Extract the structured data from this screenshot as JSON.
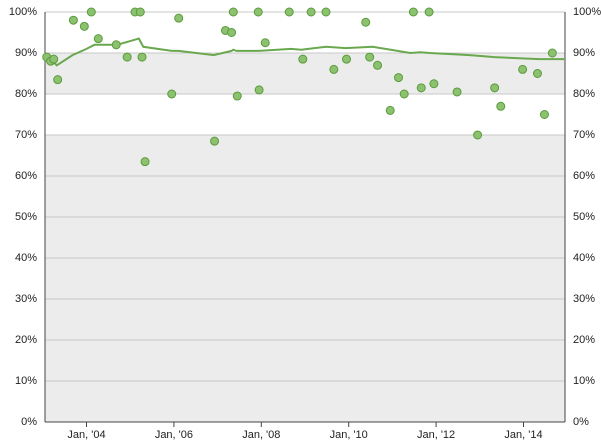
{
  "chart_data": {
    "type": "scatter",
    "xlim": [
      2003.05,
      2014.95
    ],
    "xticks": [
      {
        "value": 2004,
        "label": "Jan, '04"
      },
      {
        "value": 2006,
        "label": "Jan, '06"
      },
      {
        "value": 2008,
        "label": "Jan, '08"
      },
      {
        "value": 2010,
        "label": "Jan, '10"
      },
      {
        "value": 2012,
        "label": "Jan, '12"
      },
      {
        "value": 2014,
        "label": "Jan, '14"
      }
    ],
    "ylim": [
      0,
      100
    ],
    "yticks": [
      {
        "value": 0,
        "label": "0%"
      },
      {
        "value": 10,
        "label": "10%"
      },
      {
        "value": 20,
        "label": "20%"
      },
      {
        "value": 30,
        "label": "30%"
      },
      {
        "value": 40,
        "label": "40%"
      },
      {
        "value": 50,
        "label": "50%"
      },
      {
        "value": 60,
        "label": "60%"
      },
      {
        "value": 70,
        "label": "70%"
      },
      {
        "value": 80,
        "label": "80%"
      },
      {
        "value": 90,
        "label": "90%"
      },
      {
        "value": 100,
        "label": "100%"
      }
    ],
    "grid": true,
    "points": {
      "color": "#8cc26f",
      "x": [
        2003.09,
        2003.18,
        2003.25,
        2003.34,
        2003.7,
        2003.95,
        2004.11,
        2004.27,
        2004.68,
        2004.93,
        2005.11,
        2005.23,
        2005.27,
        2005.34,
        2005.95,
        2006.11,
        2006.93,
        2007.18,
        2007.32,
        2007.36,
        2007.45,
        2007.93,
        2007.95,
        2008.09,
        2008.64,
        2008.95,
        2009.14,
        2009.48,
        2009.66,
        2009.95,
        2010.39,
        2010.48,
        2010.66,
        2010.95,
        2011.14,
        2011.27,
        2011.48,
        2011.66,
        2011.84,
        2011.95,
        2012.48,
        2012.95,
        2013.34,
        2013.48,
        2013.98,
        2014.32,
        2014.48,
        2014.66
      ],
      "y": [
        89,
        88,
        88.5,
        83.5,
        98,
        96.5,
        100,
        93.5,
        92,
        89,
        100,
        100,
        89,
        63.5,
        80,
        98.5,
        68.5,
        95.5,
        95,
        100,
        79.5,
        100,
        81,
        92.5,
        100,
        88.5,
        100,
        100,
        86,
        88.5,
        97.5,
        89,
        87,
        76,
        84,
        80,
        100,
        81.5,
        100,
        82.5,
        80.5,
        70,
        81.5,
        77,
        86,
        85,
        75,
        90
      ]
    },
    "trend": {
      "color": "#6aa84f",
      "x": [
        2003.09,
        2003.32,
        2003.68,
        2004.0,
        2004.18,
        2004.7,
        2005.2,
        2005.3,
        2005.95,
        2006.11,
        2006.91,
        2007.32,
        2007.36,
        2007.43,
        2007.95,
        2008.68,
        2008.91,
        2009.48,
        2009.93,
        2010.55,
        2011.41,
        2011.64,
        2011.86,
        2012.77,
        2013.34,
        2014.36,
        2014.93
      ],
      "y": [
        89.5,
        87,
        89.5,
        91,
        92,
        92,
        93.5,
        91.5,
        90.5,
        90.5,
        89.5,
        90.5,
        90.8,
        90.5,
        90.5,
        91,
        90.8,
        91.5,
        91.2,
        91.5,
        90,
        90.2,
        90,
        89.5,
        89,
        88.5,
        88.5
      ]
    }
  }
}
